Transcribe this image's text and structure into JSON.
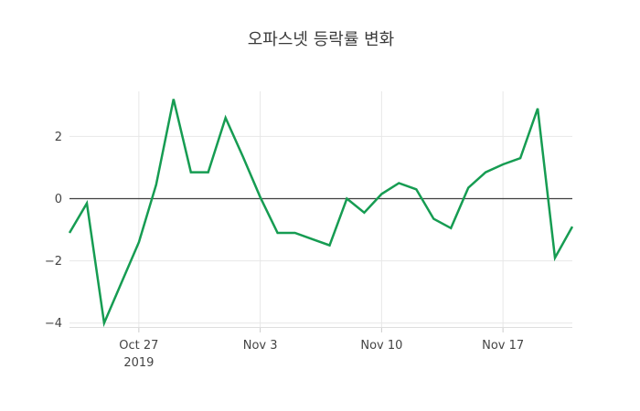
{
  "title": "오파스넷 등락률 변화",
  "colors": {
    "line": "#169c52",
    "grid": "#e7e7e7",
    "axis_line": "#dedede",
    "tick_mark": "#cccccc",
    "zeroline": "#3f3f3f",
    "tick_text": "#444444",
    "title_text": "#3a3a3a",
    "background": "#ffffff"
  },
  "chart_data": {
    "type": "line",
    "title": "오파스넷 등락률 변화",
    "x": [
      "2019-10-23",
      "2019-10-24",
      "2019-10-25",
      "2019-10-26",
      "2019-10-27",
      "2019-10-28",
      "2019-10-29",
      "2019-10-30",
      "2019-10-31",
      "2019-11-01",
      "2019-11-02",
      "2019-11-03",
      "2019-11-04",
      "2019-11-05",
      "2019-11-06",
      "2019-11-07",
      "2019-11-08",
      "2019-11-09",
      "2019-11-10",
      "2019-11-11",
      "2019-11-12",
      "2019-11-13",
      "2019-11-14",
      "2019-11-15",
      "2019-11-16",
      "2019-11-17",
      "2019-11-18",
      "2019-11-19",
      "2019-11-20",
      "2019-11-21"
    ],
    "values": [
      -1.1,
      -0.15,
      -4.0,
      -2.7,
      -1.4,
      0.45,
      3.2,
      0.85,
      0.85,
      2.6,
      1.35,
      0.05,
      -1.1,
      -1.1,
      -1.3,
      -1.5,
      0.0,
      -0.45,
      0.15,
      0.5,
      0.3,
      -0.65,
      -0.95,
      0.35,
      0.85,
      1.1,
      1.3,
      2.9,
      -1.9,
      -0.9
    ],
    "x_ticks": [
      {
        "label": "Oct 27",
        "sublabel": "2019",
        "date": "2019-10-27"
      },
      {
        "label": "Nov 3",
        "sublabel": "",
        "date": "2019-11-03"
      },
      {
        "label": "Nov 10",
        "sublabel": "",
        "date": "2019-11-10"
      },
      {
        "label": "Nov 17",
        "sublabel": "",
        "date": "2019-11-17"
      }
    ],
    "y_ticks": [
      {
        "label": "2",
        "value": 2
      },
      {
        "label": "0",
        "value": 0
      },
      {
        "label": "−2",
        "value": -2
      },
      {
        "label": "−4",
        "value": -4
      }
    ],
    "ylim": [
      -4.15,
      3.45
    ],
    "xlabel": "",
    "ylabel": "",
    "grid": true,
    "legend": false,
    "zeroline": true,
    "line_width": 2.5
  }
}
